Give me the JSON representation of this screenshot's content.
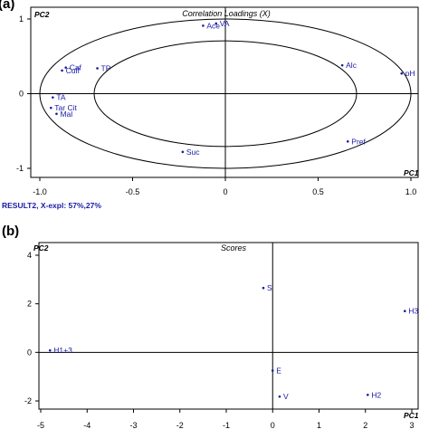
{
  "panel_a": {
    "letter": "(a)",
    "title": "Correlation Loadings (X)",
    "y_axis_name": "PC2",
    "x_axis_name": "PC1",
    "footer": "RESULT2, X-expl: 57%,27%"
  },
  "panel_b": {
    "letter": "(b)",
    "title": "Scores",
    "y_axis_name": "PC2",
    "x_axis_name": "PC1"
  },
  "colors": {
    "points": "#1a1aa6",
    "axes": "#000000"
  },
  "chart_data": [
    {
      "type": "scatter",
      "title": "Correlation Loadings (X)",
      "xlabel": "PC1",
      "ylabel": "PC2",
      "xlim": [
        -1.0,
        1.0
      ],
      "ylim": [
        -1.0,
        1.0
      ],
      "xticks": [
        "-1.0",
        "-0.5",
        "0",
        "0.5",
        "1.0"
      ],
      "yticks": [
        "-1",
        "0",
        "1"
      ],
      "grid": false,
      "reference_ellipses": [
        1.0,
        0.7071
      ],
      "points": [
        {
          "label": "VA",
          "x": -0.05,
          "y": 0.94
        },
        {
          "label": "Ace",
          "x": -0.12,
          "y": 0.91
        },
        {
          "label": "Caf",
          "x": -0.86,
          "y": 0.35
        },
        {
          "label": "Cuff",
          "x": -0.88,
          "y": 0.31
        },
        {
          "label": "TP",
          "x": -0.69,
          "y": 0.34
        },
        {
          "label": "Alc",
          "x": 0.63,
          "y": 0.38
        },
        {
          "label": "pH",
          "x": 0.95,
          "y": 0.27
        },
        {
          "label": "TA",
          "x": -0.93,
          "y": -0.05
        },
        {
          "label": "Tar Cit",
          "x": -0.94,
          "y": -0.19
        },
        {
          "label": "Mal",
          "x": -0.91,
          "y": -0.27
        },
        {
          "label": "Suc",
          "x": -0.23,
          "y": -0.78
        },
        {
          "label": "Pref",
          "x": 0.66,
          "y": -0.64
        }
      ]
    },
    {
      "type": "scatter",
      "title": "Scores",
      "xlabel": "PC1",
      "ylabel": "PC2",
      "xlim": [
        -5,
        3
      ],
      "ylim": [
        -2,
        4
      ],
      "xticks": [
        "-5",
        "-4",
        "-3",
        "-2",
        "-1",
        "0",
        "1",
        "2",
        "3"
      ],
      "yticks": [
        "-2",
        "0",
        "2",
        "4"
      ],
      "grid": false,
      "points": [
        {
          "label": "S",
          "x": -0.2,
          "y": 2.65
        },
        {
          "label": "H3",
          "x": 2.85,
          "y": 1.7
        },
        {
          "label": "H1+3",
          "x": -4.8,
          "y": 0.08
        },
        {
          "label": "E",
          "x": 0.0,
          "y": -0.75
        },
        {
          "label": "V",
          "x": 0.15,
          "y": -1.82
        },
        {
          "label": "H2",
          "x": 2.05,
          "y": -1.75
        }
      ]
    }
  ]
}
